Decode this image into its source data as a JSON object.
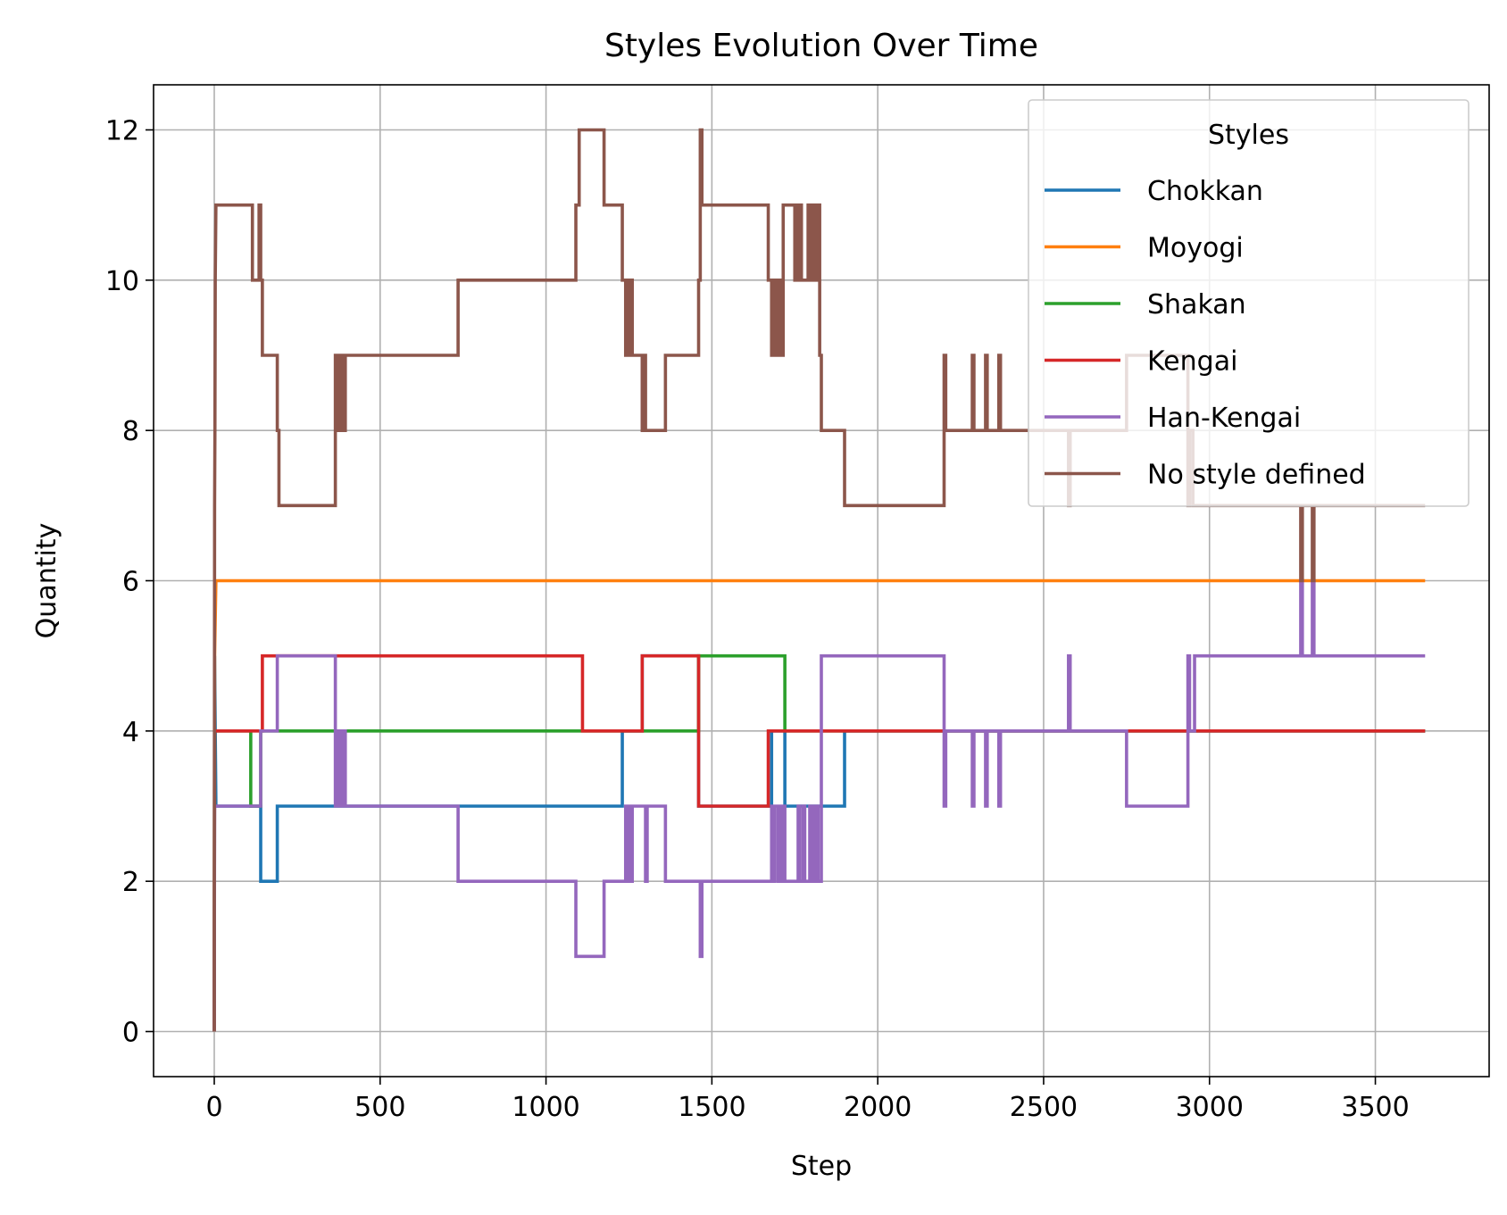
{
  "chart_data": {
    "type": "line",
    "title": "Styles Evolution Over Time",
    "xlabel": "Step",
    "ylabel": "Quantity",
    "xlim": [
      -183,
      3843
    ],
    "ylim": [
      -0.6,
      12.6
    ],
    "xticks": [
      0,
      500,
      1000,
      1500,
      2000,
      2500,
      3000,
      3500
    ],
    "yticks": [
      0,
      2,
      4,
      6,
      8,
      10,
      12
    ],
    "grid": true,
    "step": true,
    "legend": {
      "title": "Styles",
      "placement": "upper right"
    },
    "series": [
      {
        "name": "Chokkan",
        "color": "#1f77b4",
        "points": [
          [
            0,
            0
          ],
          [
            1,
            5
          ],
          [
            5,
            3
          ],
          [
            140,
            3
          ],
          [
            140,
            2
          ],
          [
            190,
            2
          ],
          [
            190,
            3
          ],
          [
            1230,
            3
          ],
          [
            1230,
            4
          ],
          [
            1290,
            4
          ],
          [
            1290,
            5
          ],
          [
            1460,
            5
          ],
          [
            1460,
            3
          ],
          [
            1680,
            3
          ],
          [
            1680,
            4
          ],
          [
            1720,
            4
          ],
          [
            1720,
            3
          ],
          [
            1900,
            3
          ],
          [
            1900,
            4
          ],
          [
            3650,
            4
          ]
        ]
      },
      {
        "name": "Moyogi",
        "color": "#ff7f0e",
        "points": [
          [
            0,
            0
          ],
          [
            1,
            5
          ],
          [
            5,
            6
          ],
          [
            3650,
            6
          ]
        ]
      },
      {
        "name": "Shakan",
        "color": "#2ca02c",
        "points": [
          [
            0,
            0
          ],
          [
            1,
            4
          ],
          [
            110,
            4
          ],
          [
            110,
            3
          ],
          [
            140,
            3
          ],
          [
            140,
            4
          ],
          [
            1460,
            4
          ],
          [
            1460,
            5
          ],
          [
            1720,
            5
          ],
          [
            1720,
            4
          ],
          [
            3650,
            4
          ]
        ]
      },
      {
        "name": "Kengai",
        "color": "#d62728",
        "points": [
          [
            0,
            0
          ],
          [
            1,
            4
          ],
          [
            145,
            4
          ],
          [
            145,
            5
          ],
          [
            1110,
            5
          ],
          [
            1110,
            4
          ],
          [
            1290,
            4
          ],
          [
            1290,
            5
          ],
          [
            1460,
            5
          ],
          [
            1460,
            3
          ],
          [
            1670,
            3
          ],
          [
            1670,
            4
          ],
          [
            3650,
            4
          ]
        ]
      },
      {
        "name": "Han-Kengai",
        "color": "#9467bd",
        "points": [
          [
            0,
            0
          ],
          [
            1,
            3
          ],
          [
            140,
            3
          ],
          [
            140,
            4
          ],
          [
            190,
            4
          ],
          [
            190,
            5
          ],
          [
            365,
            5
          ],
          [
            365,
            3
          ],
          [
            370,
            3
          ],
          [
            370,
            4
          ],
          [
            375,
            4
          ],
          [
            375,
            3
          ],
          [
            380,
            3
          ],
          [
            380,
            4
          ],
          [
            385,
            4
          ],
          [
            385,
            3
          ],
          [
            390,
            3
          ],
          [
            390,
            4
          ],
          [
            395,
            4
          ],
          [
            395,
            3
          ],
          [
            735,
            3
          ],
          [
            735,
            2
          ],
          [
            1090,
            2
          ],
          [
            1090,
            1
          ],
          [
            1175,
            1
          ],
          [
            1175,
            2
          ],
          [
            1240,
            2
          ],
          [
            1240,
            3
          ],
          [
            1245,
            3
          ],
          [
            1245,
            2
          ],
          [
            1250,
            2
          ],
          [
            1250,
            3
          ],
          [
            1255,
            3
          ],
          [
            1255,
            2
          ],
          [
            1260,
            2
          ],
          [
            1260,
            3
          ],
          [
            1300,
            3
          ],
          [
            1300,
            2
          ],
          [
            1305,
            2
          ],
          [
            1305,
            3
          ],
          [
            1360,
            3
          ],
          [
            1360,
            2
          ],
          [
            1465,
            2
          ],
          [
            1465,
            1
          ],
          [
            1470,
            1
          ],
          [
            1470,
            2
          ],
          [
            1680,
            2
          ],
          [
            1680,
            3
          ],
          [
            1685,
            3
          ],
          [
            1685,
            2
          ],
          [
            1690,
            2
          ],
          [
            1690,
            3
          ],
          [
            1700,
            3
          ],
          [
            1700,
            2
          ],
          [
            1705,
            2
          ],
          [
            1705,
            3
          ],
          [
            1710,
            3
          ],
          [
            1710,
            2
          ],
          [
            1715,
            2
          ],
          [
            1715,
            3
          ],
          [
            1720,
            3
          ],
          [
            1720,
            2
          ],
          [
            1760,
            2
          ],
          [
            1760,
            3
          ],
          [
            1765,
            3
          ],
          [
            1765,
            2
          ],
          [
            1775,
            2
          ],
          [
            1775,
            3
          ],
          [
            1780,
            3
          ],
          [
            1780,
            2
          ],
          [
            1795,
            2
          ],
          [
            1795,
            3
          ],
          [
            1800,
            3
          ],
          [
            1800,
            2
          ],
          [
            1805,
            2
          ],
          [
            1805,
            3
          ],
          [
            1810,
            3
          ],
          [
            1810,
            2
          ],
          [
            1815,
            2
          ],
          [
            1815,
            3
          ],
          [
            1820,
            3
          ],
          [
            1820,
            2
          ],
          [
            1830,
            2
          ],
          [
            1830,
            5
          ],
          [
            2200,
            5
          ],
          [
            2200,
            3
          ],
          [
            2205,
            3
          ],
          [
            2205,
            4
          ],
          [
            2285,
            4
          ],
          [
            2285,
            3
          ],
          [
            2290,
            3
          ],
          [
            2290,
            4
          ],
          [
            2325,
            4
          ],
          [
            2325,
            3
          ],
          [
            2330,
            3
          ],
          [
            2330,
            4
          ],
          [
            2365,
            4
          ],
          [
            2365,
            3
          ],
          [
            2370,
            3
          ],
          [
            2370,
            4
          ],
          [
            2575,
            4
          ],
          [
            2575,
            5
          ],
          [
            2580,
            5
          ],
          [
            2580,
            4
          ],
          [
            2750,
            4
          ],
          [
            2750,
            3
          ],
          [
            2935,
            3
          ],
          [
            2935,
            5
          ],
          [
            2940,
            5
          ],
          [
            2940,
            4
          ],
          [
            2955,
            4
          ],
          [
            2955,
            5
          ],
          [
            3275,
            5
          ],
          [
            3275,
            6
          ],
          [
            3280,
            6
          ],
          [
            3280,
            5
          ],
          [
            3310,
            5
          ],
          [
            3310,
            6
          ],
          [
            3315,
            6
          ],
          [
            3315,
            5
          ],
          [
            3650,
            5
          ]
        ]
      },
      {
        "name": "No style defined",
        "color": "#8c564b",
        "points": [
          [
            0,
            0
          ],
          [
            1,
            7
          ],
          [
            2,
            8
          ],
          [
            3,
            10
          ],
          [
            5,
            11
          ],
          [
            115,
            11
          ],
          [
            115,
            10
          ],
          [
            135,
            10
          ],
          [
            135,
            11
          ],
          [
            140,
            11
          ],
          [
            140,
            10
          ],
          [
            145,
            10
          ],
          [
            145,
            9
          ],
          [
            190,
            9
          ],
          [
            190,
            8
          ],
          [
            195,
            8
          ],
          [
            195,
            7
          ],
          [
            365,
            7
          ],
          [
            365,
            9
          ],
          [
            370,
            9
          ],
          [
            370,
            8
          ],
          [
            375,
            8
          ],
          [
            375,
            9
          ],
          [
            380,
            9
          ],
          [
            380,
            8
          ],
          [
            385,
            8
          ],
          [
            385,
            9
          ],
          [
            390,
            9
          ],
          [
            390,
            8
          ],
          [
            395,
            8
          ],
          [
            395,
            9
          ],
          [
            735,
            9
          ],
          [
            735,
            10
          ],
          [
            1090,
            10
          ],
          [
            1090,
            11
          ],
          [
            1100,
            11
          ],
          [
            1100,
            12
          ],
          [
            1175,
            12
          ],
          [
            1175,
            11
          ],
          [
            1230,
            11
          ],
          [
            1230,
            10
          ],
          [
            1240,
            10
          ],
          [
            1240,
            9
          ],
          [
            1245,
            9
          ],
          [
            1245,
            10
          ],
          [
            1250,
            10
          ],
          [
            1250,
            9
          ],
          [
            1255,
            9
          ],
          [
            1255,
            10
          ],
          [
            1260,
            10
          ],
          [
            1260,
            9
          ],
          [
            1290,
            9
          ],
          [
            1290,
            8
          ],
          [
            1295,
            8
          ],
          [
            1295,
            9
          ],
          [
            1300,
            9
          ],
          [
            1300,
            8
          ],
          [
            1360,
            8
          ],
          [
            1360,
            9
          ],
          [
            1460,
            9
          ],
          [
            1460,
            10
          ],
          [
            1465,
            10
          ],
          [
            1465,
            12
          ],
          [
            1470,
            12
          ],
          [
            1470,
            11
          ],
          [
            1670,
            11
          ],
          [
            1670,
            10
          ],
          [
            1680,
            10
          ],
          [
            1680,
            9
          ],
          [
            1685,
            9
          ],
          [
            1685,
            10
          ],
          [
            1690,
            10
          ],
          [
            1690,
            9
          ],
          [
            1695,
            9
          ],
          [
            1695,
            10
          ],
          [
            1700,
            10
          ],
          [
            1700,
            9
          ],
          [
            1705,
            9
          ],
          [
            1705,
            10
          ],
          [
            1710,
            10
          ],
          [
            1710,
            9
          ],
          [
            1715,
            9
          ],
          [
            1715,
            11
          ],
          [
            1750,
            11
          ],
          [
            1750,
            10
          ],
          [
            1755,
            10
          ],
          [
            1755,
            11
          ],
          [
            1760,
            11
          ],
          [
            1760,
            10
          ],
          [
            1765,
            10
          ],
          [
            1765,
            11
          ],
          [
            1770,
            11
          ],
          [
            1770,
            10
          ],
          [
            1790,
            10
          ],
          [
            1790,
            11
          ],
          [
            1795,
            11
          ],
          [
            1795,
            10
          ],
          [
            1800,
            10
          ],
          [
            1800,
            11
          ],
          [
            1805,
            11
          ],
          [
            1805,
            10
          ],
          [
            1810,
            10
          ],
          [
            1810,
            11
          ],
          [
            1815,
            11
          ],
          [
            1815,
            10
          ],
          [
            1820,
            10
          ],
          [
            1820,
            11
          ],
          [
            1825,
            11
          ],
          [
            1825,
            9
          ],
          [
            1830,
            9
          ],
          [
            1830,
            8
          ],
          [
            1900,
            8
          ],
          [
            1900,
            7
          ],
          [
            2200,
            7
          ],
          [
            2200,
            9
          ],
          [
            2205,
            9
          ],
          [
            2205,
            8
          ],
          [
            2285,
            8
          ],
          [
            2285,
            9
          ],
          [
            2290,
            9
          ],
          [
            2290,
            8
          ],
          [
            2325,
            8
          ],
          [
            2325,
            9
          ],
          [
            2330,
            9
          ],
          [
            2330,
            8
          ],
          [
            2365,
            8
          ],
          [
            2365,
            9
          ],
          [
            2370,
            9
          ],
          [
            2370,
            8
          ],
          [
            2575,
            8
          ],
          [
            2575,
            7
          ],
          [
            2580,
            7
          ],
          [
            2580,
            8
          ],
          [
            2750,
            8
          ],
          [
            2750,
            9
          ],
          [
            2935,
            9
          ],
          [
            2935,
            7
          ],
          [
            2940,
            7
          ],
          [
            2940,
            8
          ],
          [
            2950,
            8
          ],
          [
            2950,
            7
          ],
          [
            3275,
            7
          ],
          [
            3275,
            6
          ],
          [
            3280,
            6
          ],
          [
            3280,
            7
          ],
          [
            3310,
            7
          ],
          [
            3310,
            6
          ],
          [
            3315,
            6
          ],
          [
            3315,
            7
          ],
          [
            3650,
            7
          ]
        ]
      }
    ]
  }
}
